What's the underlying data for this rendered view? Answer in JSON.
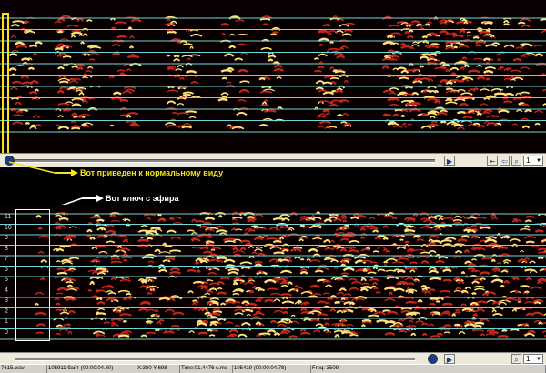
{
  "annotations": {
    "top_note": "Вот приведен к нормальному виду",
    "bottom_note": "Вот ключ с эфира",
    "top_color": "#f5e21a",
    "bottom_color": "#ffffff"
  },
  "bottom_axis": {
    "labels": [
      "11",
      "10",
      "9",
      "8",
      "7",
      "6",
      "5",
      "4",
      "3",
      "2",
      "1",
      "0"
    ]
  },
  "controls": {
    "zoom_value": "1",
    "play_icon": "play-icon",
    "zoom_icon": "magnifier-icon"
  },
  "statusbar": {
    "file": "7615.wav",
    "size": "105911 байт (00:00:04.80)",
    "coords": "X:380 Y:698",
    "time": "Time:01.4476 s.ms",
    "selection": "105419 (00:00:04.78)",
    "freq": "Freq: 3509"
  },
  "colors": {
    "grid_line": "#6fd6d6",
    "spectrum_hot": "#ffe27a",
    "spectrum_mid": "#c8261a",
    "panel": "#ece9d8"
  }
}
